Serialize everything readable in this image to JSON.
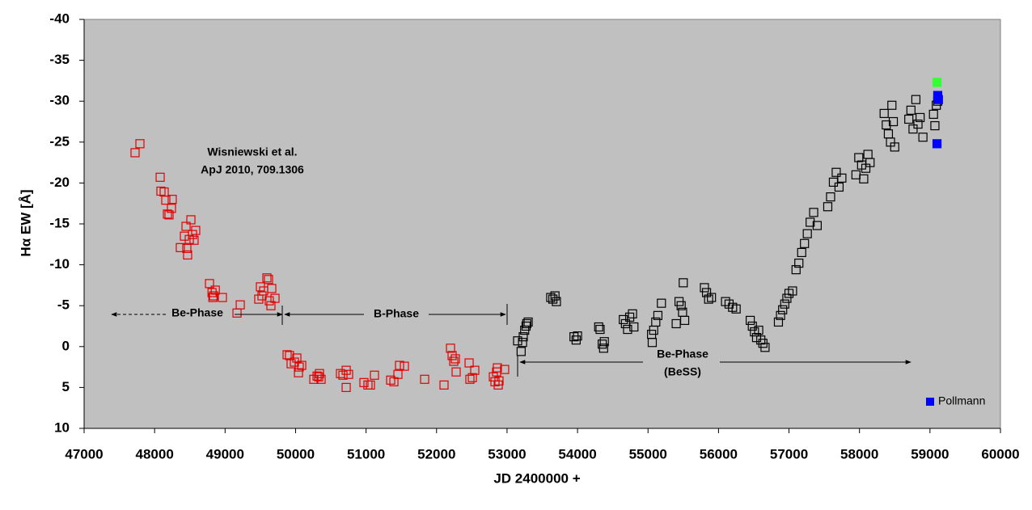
{
  "chart_data": {
    "type": "scatter",
    "xlabel": "JD 2400000 +",
    "ylabel": "Hα EW [Å]",
    "xlim": [
      47000,
      60000
    ],
    "xticks": [
      47000,
      48000,
      49000,
      50000,
      51000,
      52000,
      53000,
      54000,
      55000,
      56000,
      57000,
      58000,
      59000,
      60000
    ],
    "ylim": [
      10,
      -40
    ],
    "yticks": [
      10,
      5,
      0,
      -5,
      -10,
      -15,
      -20,
      -25,
      -30,
      -35,
      -40
    ],
    "legend": "lower right",
    "annotations": [
      "Wisniewski et al.",
      "ApJ 2010, 709.1306",
      "Be-Phase",
      "B-Phase",
      "Be-Phase",
      "(BeSS)"
    ],
    "series": [
      {
        "color": "#e00000",
        "marker": "open",
        "x": [
          47723,
          47792,
          48079,
          48090,
          48136,
          48159,
          48182,
          48239,
          48250,
          48205,
          48365,
          48423,
          48457,
          48468,
          48492,
          48515,
          48538,
          48560,
          48583,
          48446,
          48779,
          48815,
          48838,
          48861,
          48827,
          48962,
          49169,
          49215,
          49478,
          49501,
          49547,
          49593,
          49616,
          49627,
          49650,
          49662,
          49708,
          49524,
          49880,
          49914,
          49937,
          49983,
          50018,
          50052,
          50041,
          50087,
          50259,
          50305,
          50339,
          50362,
          50328,
          50637,
          50672,
          50718,
          50718,
          50752,
          50970,
          51027,
          51062,
          51119,
          51349,
          51395,
          51452,
          51475,
          51544,
          51831,
          52106,
          52198,
          52221,
          52244,
          52278,
          52267,
          52462,
          52473,
          52508,
          52542,
          52806,
          52829,
          52852,
          52863,
          52875,
          52886,
          52966
        ],
        "values": [
          -23.7,
          -24.8,
          -20.7,
          -19.0,
          -18.9,
          -17.9,
          -16.2,
          -16.9,
          -18.0,
          -16.1,
          -12.1,
          -13.5,
          -12.0,
          -11.2,
          -13.1,
          -15.5,
          -13.7,
          -13.0,
          -14.2,
          -14.7,
          -7.7,
          -6.6,
          -6.2,
          -6.9,
          -6.0,
          -6.0,
          -4.1,
          -5.1,
          -5.8,
          -7.3,
          -6.8,
          -8.4,
          -8.2,
          -5.6,
          -5.0,
          -7.1,
          -5.9,
          -6.2,
          1.0,
          1.1,
          2.1,
          1.9,
          1.4,
          2.5,
          3.2,
          2.3,
          4.0,
          3.6,
          3.3,
          4.0,
          3.7,
          3.3,
          3.5,
          2.9,
          5.0,
          3.4,
          4.4,
          4.7,
          4.7,
          3.5,
          4.1,
          4.3,
          3.4,
          2.3,
          2.4,
          4.0,
          4.7,
          0.2,
          1.1,
          1.8,
          3.1,
          1.5,
          2.0,
          4.0,
          3.8,
          2.9,
          3.7,
          4.3,
          3.1,
          2.6,
          4.7,
          4.2,
          2.8
        ]
      },
      {
        "color": "#000000",
        "marker": "open",
        "x": [
          53150,
          53200,
          53230,
          53250,
          53270,
          53300,
          53220,
          53280,
          53620,
          53650,
          53680,
          53700,
          53950,
          53980,
          54000,
          54300,
          54320,
          54350,
          54370,
          54380,
          54650,
          54680,
          54710,
          54740,
          54780,
          54800,
          55050,
          55080,
          55110,
          55140,
          55190,
          55060,
          55400,
          55440,
          55470,
          55490,
          55500,
          55520,
          55800,
          55830,
          55860,
          55900,
          56100,
          56150,
          56200,
          56250,
          56450,
          56480,
          56510,
          56540,
          56570,
          56600,
          56630,
          56660,
          56850,
          56880,
          56910,
          56940,
          56970,
          57000,
          57050,
          57100,
          57140,
          57180,
          57220,
          57260,
          57300,
          57350,
          57400,
          57550,
          57590,
          57630,
          57670,
          57710,
          57750,
          57950,
          57990,
          58030,
          58060,
          58090,
          58120,
          58150,
          58350,
          58380,
          58410,
          58440,
          58460,
          58480,
          58500,
          58700,
          58730,
          58760,
          58800,
          58830,
          58860,
          58900,
          59050,
          59070,
          59090,
          59110
        ],
        "values": [
          -0.7,
          0.6,
          -1.2,
          -2.0,
          -2.5,
          -3.0,
          -0.5,
          -2.8,
          -6.0,
          -5.8,
          -6.2,
          -5.5,
          -1.2,
          -0.8,
          -1.3,
          -2.4,
          -2.1,
          -0.3,
          0.2,
          -0.6,
          -3.3,
          -2.8,
          -2.1,
          -3.6,
          -4.0,
          -2.4,
          -1.5,
          -2.0,
          -3.0,
          -3.8,
          -5.3,
          -0.5,
          -2.8,
          -5.5,
          -5.0,
          -4.2,
          -7.8,
          -3.2,
          -7.2,
          -6.6,
          -5.8,
          -6.0,
          -5.5,
          -5.2,
          -4.8,
          -4.6,
          -3.2,
          -2.5,
          -1.8,
          -1.1,
          -2.0,
          -0.8,
          -0.4,
          0.1,
          -3.0,
          -3.8,
          -4.5,
          -5.2,
          -5.9,
          -6.5,
          -6.8,
          -9.4,
          -10.2,
          -11.5,
          -12.6,
          -13.8,
          -15.2,
          -16.4,
          -14.8,
          -17.1,
          -18.3,
          -20.1,
          -21.3,
          -19.5,
          -20.6,
          -21.0,
          -23.1,
          -22.2,
          -20.5,
          -21.8,
          -23.5,
          -22.5,
          -28.5,
          -27.1,
          -26.0,
          -25.0,
          -29.5,
          -27.5,
          -24.4,
          -27.8,
          -28.9,
          -26.6,
          -30.2,
          -27.2,
          -28.0,
          -25.6,
          -28.4,
          -27.0,
          -29.5,
          -30.0
        ]
      },
      {
        "name": "Pollmann",
        "color": "#0000ff",
        "marker": "filled",
        "x": [
          59100,
          59120,
          59110
        ],
        "values": [
          -24.8,
          -30.2,
          -30.7
        ]
      },
      {
        "color": "#33ff33",
        "marker": "filled",
        "x": [
          59100
        ],
        "values": [
          -32.3
        ]
      }
    ]
  }
}
